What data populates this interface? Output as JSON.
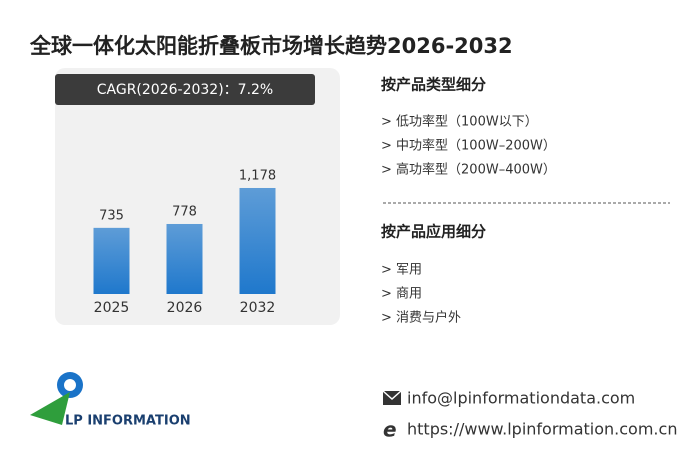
{
  "chart_data": {
    "type": "bar",
    "title": "全球一体化太阳能折叠板市场增长趋势2026-2032",
    "annotation": "CAGR(2026-2032)：7.2%",
    "categories": [
      "2025",
      "2026",
      "2032"
    ],
    "values": [
      735,
      778,
      1178
    ],
    "value_labels": [
      "735",
      "778",
      "1,178"
    ],
    "color": "#1f78cc",
    "ylim": [
      0,
      1200
    ]
  },
  "segments": [
    {
      "title": "按产品类型细分",
      "items": [
        "> 低功率型（100W以下）",
        "> 中功率型（100W–200W）",
        "> 高功率型（200W–400W）"
      ]
    },
    {
      "title": "按产品应用细分",
      "items": [
        "> 军用",
        "> 商用",
        "> 消费与户外"
      ]
    }
  ],
  "logo": "LP INFORMATION",
  "contact": {
    "email": "info@lpinformationdata.com",
    "web": "https://www.lpinformation.com.cn"
  }
}
